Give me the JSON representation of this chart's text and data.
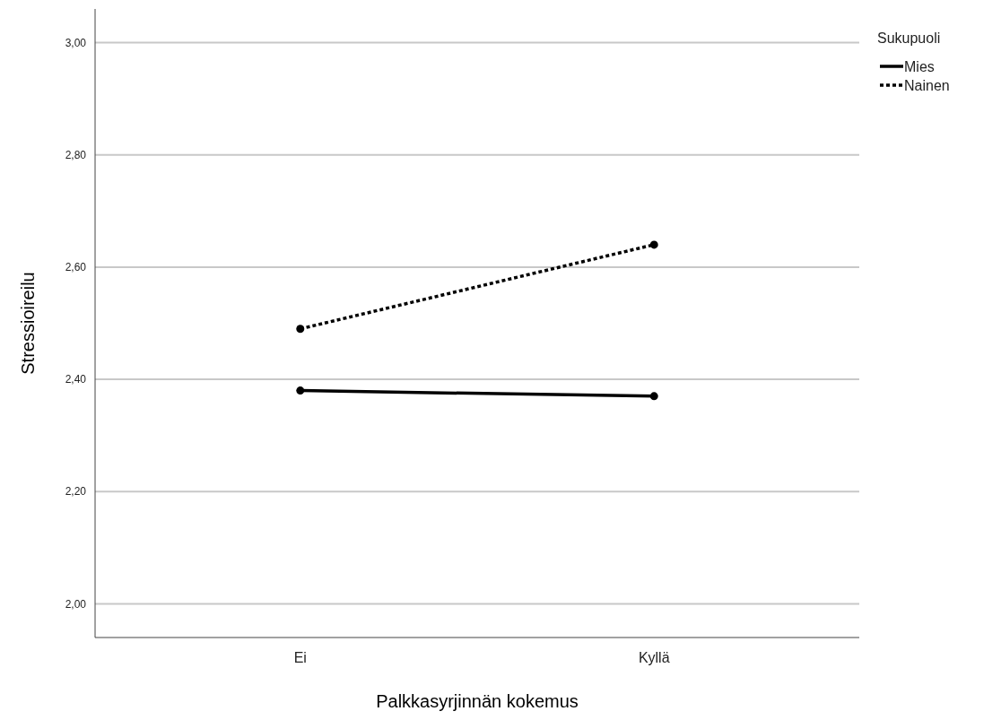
{
  "chart_data": {
    "type": "line",
    "xlabel": "Palkkasyrjinnän kokemus",
    "ylabel": "Stressioireilu",
    "legend_title": "Sukupuoli",
    "legend": "top right",
    "grid": "y",
    "marker": "circle",
    "categories": [
      "Ei",
      "Kyllä"
    ],
    "series": [
      {
        "name": "Mies",
        "color": "#000000",
        "values": [
          2.38,
          2.37
        ],
        "line_style": "solid"
      },
      {
        "name": "Nainen",
        "color": "#000000",
        "values": [
          2.49,
          2.64
        ],
        "line_style": "dotted"
      }
    ],
    "ylim": [
      1.94,
      3.06
    ],
    "yticks": [
      {
        "value": 2,
        "label": "2,00"
      },
      {
        "value": 2.2,
        "label": "2,20"
      },
      {
        "value": 2.4,
        "label": "2,40"
      },
      {
        "value": 2.6,
        "label": "2,60"
      },
      {
        "value": 2.8,
        "label": "2,80"
      },
      {
        "value": 3,
        "label": "3,00"
      }
    ]
  }
}
